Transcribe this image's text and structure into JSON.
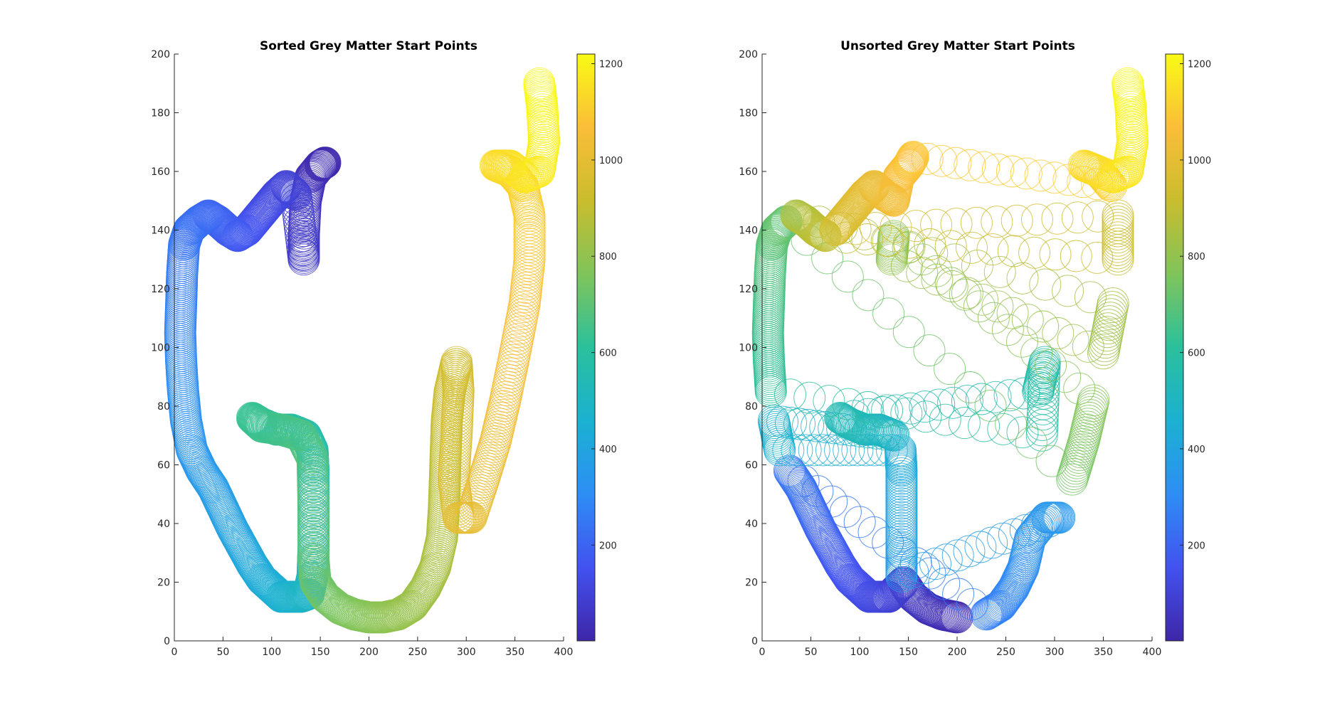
{
  "chart_data": [
    {
      "type": "scatter",
      "title": "Sorted Grey Matter Start Points",
      "xlabel": "",
      "ylabel": "",
      "xlim": [
        0,
        400
      ],
      "ylim": [
        0,
        200
      ],
      "xticks": [
        0,
        50,
        100,
        150,
        200,
        250,
        300,
        350,
        400
      ],
      "yticks": [
        0,
        20,
        40,
        60,
        80,
        100,
        120,
        140,
        160,
        180,
        200
      ],
      "marker": "open-circle",
      "grid": false,
      "colormap": "parula",
      "colorbar": {
        "range": [
          1,
          1220
        ],
        "ticks": [
          200,
          400,
          600,
          800,
          1000,
          1200
        ],
        "placement": "right"
      },
      "color_stops": [
        "#3e26a8",
        "#4352f0",
        "#2d8ef5",
        "#1bb1d1",
        "#2ac09c",
        "#80c45a",
        "#c9bd2d",
        "#fbbd38",
        "#f9fb14"
      ],
      "path": [
        [
          155,
          163
        ],
        [
          150,
          162
        ],
        [
          140,
          158
        ],
        [
          135,
          150
        ],
        [
          133,
          138
        ],
        [
          133,
          130
        ],
        [
          125,
          152
        ],
        [
          115,
          155
        ],
        [
          105,
          152
        ],
        [
          95,
          148
        ],
        [
          85,
          144
        ],
        [
          75,
          140
        ],
        [
          65,
          138
        ],
        [
          55,
          140
        ],
        [
          45,
          143
        ],
        [
          35,
          145
        ],
        [
          25,
          143
        ],
        [
          15,
          140
        ],
        [
          10,
          135
        ],
        [
          8,
          125
        ],
        [
          7,
          115
        ],
        [
          6,
          105
        ],
        [
          7,
          95
        ],
        [
          9,
          85
        ],
        [
          12,
          75
        ],
        [
          18,
          65
        ],
        [
          28,
          58
        ],
        [
          40,
          52
        ],
        [
          50,
          45
        ],
        [
          60,
          38
        ],
        [
          70,
          32
        ],
        [
          80,
          26
        ],
        [
          90,
          21
        ],
        [
          100,
          18
        ],
        [
          110,
          15
        ],
        [
          120,
          15
        ],
        [
          130,
          15
        ],
        [
          138,
          16
        ],
        [
          142,
          22
        ],
        [
          143,
          32
        ],
        [
          143,
          45
        ],
        [
          143,
          58
        ],
        [
          142,
          65
        ],
        [
          135,
          70
        ],
        [
          120,
          72
        ],
        [
          105,
          72
        ],
        [
          90,
          74
        ],
        [
          80,
          76
        ],
        [
          90,
          73
        ],
        [
          110,
          72
        ],
        [
          130,
          70
        ],
        [
          142,
          62
        ],
        [
          143,
          45
        ],
        [
          143,
          28
        ],
        [
          145,
          20
        ],
        [
          155,
          15
        ],
        [
          170,
          11
        ],
        [
          185,
          9
        ],
        [
          200,
          8
        ],
        [
          215,
          8
        ],
        [
          230,
          9
        ],
        [
          245,
          12
        ],
        [
          258,
          18
        ],
        [
          268,
          25
        ],
        [
          275,
          35
        ],
        [
          277,
          45
        ],
        [
          278,
          55
        ],
        [
          279,
          65
        ],
        [
          280,
          75
        ],
        [
          283,
          85
        ],
        [
          290,
          95
        ],
        [
          292,
          85
        ],
        [
          290,
          70
        ],
        [
          287,
          55
        ],
        [
          292,
          42
        ],
        [
          305,
          42
        ],
        [
          318,
          55
        ],
        [
          330,
          68
        ],
        [
          340,
          82
        ],
        [
          350,
          98
        ],
        [
          360,
          115
        ],
        [
          365,
          130
        ],
        [
          365,
          145
        ],
        [
          358,
          155
        ],
        [
          345,
          160
        ],
        [
          330,
          162
        ],
        [
          345,
          162
        ],
        [
          360,
          158
        ],
        [
          375,
          160
        ],
        [
          380,
          170
        ],
        [
          378,
          182
        ],
        [
          375,
          190
        ]
      ]
    },
    {
      "type": "scatter",
      "title": "Unsorted Grey Matter Start Points",
      "xlabel": "",
      "ylabel": "",
      "xlim": [
        0,
        400
      ],
      "ylim": [
        0,
        200
      ],
      "xticks": [
        0,
        50,
        100,
        150,
        200,
        250,
        300,
        350,
        400
      ],
      "yticks": [
        0,
        20,
        40,
        60,
        80,
        100,
        120,
        140,
        160,
        180,
        200
      ],
      "marker": "open-circle",
      "grid": false,
      "colormap": "parula",
      "colorbar": {
        "range": [
          1,
          1220
        ],
        "ticks": [
          200,
          400,
          600,
          800,
          1000,
          1200
        ],
        "placement": "right"
      },
      "color_stops": [
        "#3e26a8",
        "#4352f0",
        "#2d8ef5",
        "#1bb1d1",
        "#2ac09c",
        "#80c45a",
        "#c9bd2d",
        "#fbbd38",
        "#f9fb14"
      ],
      "path": [
        [
          200,
          8
        ],
        [
          185,
          9
        ],
        [
          170,
          11
        ],
        [
          155,
          15
        ],
        [
          145,
          20
        ],
        [
          130,
          15
        ],
        [
          120,
          15
        ],
        [
          110,
          15
        ],
        [
          100,
          18
        ],
        [
          90,
          21
        ],
        [
          80,
          26
        ],
        [
          70,
          32
        ],
        [
          60,
          38
        ],
        [
          50,
          45
        ],
        [
          40,
          52
        ],
        [
          28,
          58
        ],
        [
          230,
          9
        ],
        [
          245,
          12
        ],
        [
          258,
          18
        ],
        [
          268,
          25
        ],
        [
          275,
          35
        ],
        [
          292,
          42
        ],
        [
          305,
          42
        ],
        [
          143,
          22
        ],
        [
          143,
          32
        ],
        [
          143,
          45
        ],
        [
          143,
          58
        ],
        [
          142,
          65
        ],
        [
          18,
          65
        ],
        [
          12,
          75
        ],
        [
          135,
          70
        ],
        [
          120,
          72
        ],
        [
          105,
          72
        ],
        [
          90,
          74
        ],
        [
          80,
          76
        ],
        [
          283,
          85
        ],
        [
          290,
          95
        ],
        [
          287,
          70
        ],
        [
          9,
          85
        ],
        [
          7,
          95
        ],
        [
          6,
          105
        ],
        [
          7,
          115
        ],
        [
          8,
          125
        ],
        [
          10,
          135
        ],
        [
          15,
          140
        ],
        [
          25,
          143
        ],
        [
          318,
          55
        ],
        [
          330,
          68
        ],
        [
          340,
          82
        ],
        [
          135,
          138
        ],
        [
          133,
          130
        ],
        [
          350,
          98
        ],
        [
          360,
          115
        ],
        [
          35,
          145
        ],
        [
          45,
          143
        ],
        [
          55,
          140
        ],
        [
          65,
          138
        ],
        [
          365,
          130
        ],
        [
          365,
          145
        ],
        [
          75,
          140
        ],
        [
          85,
          144
        ],
        [
          95,
          148
        ],
        [
          105,
          152
        ],
        [
          115,
          155
        ],
        [
          125,
          152
        ],
        [
          135,
          150
        ],
        [
          140,
          158
        ],
        [
          150,
          162
        ],
        [
          155,
          165
        ],
        [
          358,
          155
        ],
        [
          345,
          160
        ],
        [
          330,
          162
        ],
        [
          360,
          158
        ],
        [
          375,
          160
        ],
        [
          380,
          170
        ],
        [
          378,
          182
        ],
        [
          375,
          190
        ]
      ]
    }
  ]
}
